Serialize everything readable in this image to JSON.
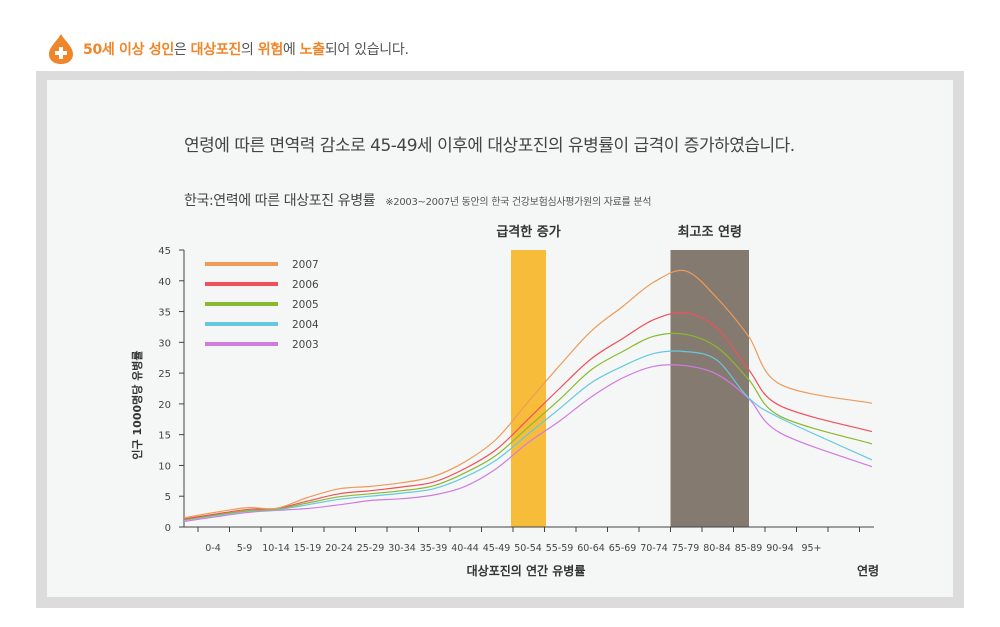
{
  "header": {
    "parts": [
      {
        "text": "50세 이상 성인",
        "highlight": true
      },
      {
        "text": "은 ",
        "highlight": false
      },
      {
        "text": "대상포진",
        "highlight": true
      },
      {
        "text": "의 ",
        "highlight": false
      },
      {
        "text": "위험",
        "highlight": true
      },
      {
        "text": "에 ",
        "highlight": false
      },
      {
        "text": "노출",
        "highlight": true
      },
      {
        "text": "되어 있습니다.",
        "highlight": false
      }
    ]
  },
  "headline": "연령에 따른 면역력 감소로 45-49세 이후에 대상포진의 유병률이 급격이 증가하였습니다.",
  "subtitle": "한국:연력에 따른 대상포진 유병률",
  "note": "※2003~2007년 동안의 한국 건강보험심사평가원의 자료를 분석",
  "colors": {
    "accent": "#f0862a",
    "icon": "#f0862a"
  },
  "chart_data": {
    "type": "line",
    "xlabel": "대상포진의 연간 유병률",
    "x_axis_end_label": "연령",
    "ylabel": "인구 1000명당 유병률",
    "ylim": [
      0,
      45
    ],
    "yticks": [
      "0",
      "5",
      "10",
      "15",
      "20",
      "25",
      "30",
      "35",
      "40",
      "45"
    ],
    "categories": [
      "0-4",
      "5-9",
      "10-14",
      "15-19",
      "20-24",
      "25-29",
      "30-34",
      "35-39",
      "40-44",
      "45-49",
      "50-54",
      "55-59",
      "60-64",
      "65-69",
      "70-74",
      "75-79",
      "80-84",
      "85-89",
      "90-94",
      "95+"
    ],
    "highlights": [
      {
        "label": "급격한 증가",
        "category": "50-54",
        "color": "#f7bd3a"
      },
      {
        "label": "최고조 연령",
        "from": "75-79",
        "to": "80-84",
        "color": "#857a6f"
      }
    ],
    "legend_position": "top-left",
    "series": [
      {
        "name": "2007",
        "color": "#ee9b5a",
        "values": [
          1.5,
          3.1,
          3.0,
          4.8,
          6.2,
          6.6,
          7.2,
          8.2,
          10.6,
          14.3,
          20.3,
          26.2,
          31.8,
          35.8,
          39.8,
          41.6,
          37.2,
          31.0,
          23.2,
          20.1
        ]
      },
      {
        "name": "2006",
        "color": "#f0505a",
        "values": [
          1.3,
          2.8,
          3.0,
          4.2,
          5.4,
          5.9,
          6.5,
          7.3,
          9.5,
          12.6,
          17.5,
          22.5,
          27.3,
          30.6,
          33.7,
          34.8,
          32.3,
          25.6,
          19.7,
          15.5
        ]
      },
      {
        "name": "2005",
        "color": "#8ab92d",
        "values": [
          1.2,
          2.6,
          2.9,
          3.9,
          4.9,
          5.4,
          5.9,
          6.7,
          8.8,
          11.7,
          16.2,
          20.7,
          25.5,
          28.5,
          31.0,
          31.3,
          29.2,
          24.0,
          18.0,
          13.5
        ]
      },
      {
        "name": "2004",
        "color": "#66c8e0",
        "values": [
          1.1,
          2.5,
          2.8,
          3.6,
          4.5,
          5.0,
          5.5,
          6.2,
          8.1,
          10.9,
          15.1,
          19.2,
          23.4,
          26.1,
          28.2,
          28.5,
          27.1,
          21.0,
          17.7,
          10.9
        ]
      },
      {
        "name": "2003",
        "color": "#d07be0",
        "values": [
          0.9,
          2.3,
          2.7,
          3.0,
          3.6,
          4.3,
          4.6,
          5.2,
          6.6,
          9.5,
          13.7,
          17.2,
          21.1,
          24.2,
          26.1,
          26.2,
          24.8,
          20.9,
          15.3,
          9.8
        ]
      }
    ]
  }
}
